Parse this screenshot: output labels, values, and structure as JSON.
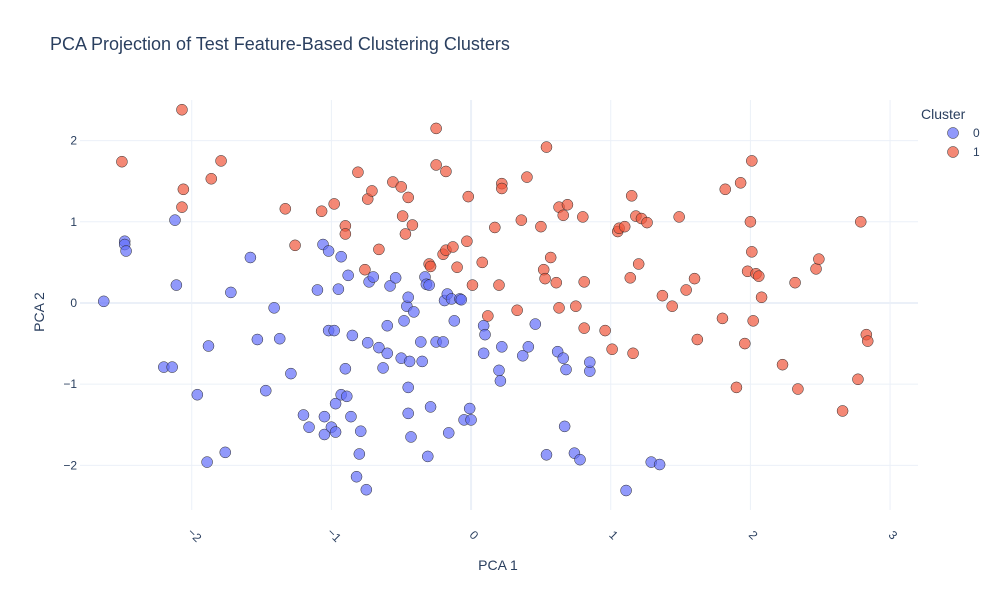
{
  "chart_data": {
    "type": "scatter",
    "title": "PCA Projection of Test Feature-Based Clustering Clusters",
    "xlabel": "PCA 1",
    "ylabel": "PCA 2",
    "xlim": [
      -2.8,
      3.2
    ],
    "ylim": [
      -2.55,
      2.5
    ],
    "x_ticks": [
      -2,
      -1,
      0,
      1,
      2,
      3
    ],
    "x_tick_labels": [
      "−2",
      "−1",
      "0",
      "1",
      "2",
      "3"
    ],
    "y_ticks": [
      -2,
      -1,
      0,
      1,
      2
    ],
    "y_tick_labels": [
      "−2",
      "−1",
      "0",
      "1",
      "2"
    ],
    "grid": true,
    "legend": {
      "title": "Cluster",
      "position": "top-right"
    },
    "series": [
      {
        "name": "0",
        "color": "#636efa",
        "points": [
          [
            -2.63,
            0.02
          ],
          [
            -2.48,
            0.76
          ],
          [
            -2.48,
            0.72
          ],
          [
            -2.47,
            0.64
          ],
          [
            -2.2,
            -0.79
          ],
          [
            -2.14,
            -0.79
          ],
          [
            -2.12,
            1.02
          ],
          [
            -2.11,
            0.22
          ],
          [
            -1.96,
            -1.13
          ],
          [
            -1.88,
            -0.53
          ],
          [
            -1.89,
            -1.96
          ],
          [
            -1.76,
            -1.84
          ],
          [
            -1.72,
            0.13
          ],
          [
            -1.58,
            0.56
          ],
          [
            -1.53,
            -0.45
          ],
          [
            -1.47,
            -1.08
          ],
          [
            -1.41,
            -0.06
          ],
          [
            -1.37,
            -0.44
          ],
          [
            -1.29,
            -0.87
          ],
          [
            -1.2,
            -1.38
          ],
          [
            -1.16,
            -1.53
          ],
          [
            -1.1,
            0.16
          ],
          [
            -1.06,
            0.72
          ],
          [
            -1.05,
            -1.4
          ],
          [
            -1.05,
            -1.62
          ],
          [
            -1.02,
            0.64
          ],
          [
            -1.02,
            -0.34
          ],
          [
            -1.0,
            -1.53
          ],
          [
            -0.98,
            -0.34
          ],
          [
            -0.97,
            -1.59
          ],
          [
            -0.97,
            -1.24
          ],
          [
            -0.95,
            0.17
          ],
          [
            -0.93,
            0.57
          ],
          [
            -0.93,
            -1.13
          ],
          [
            -0.9,
            -0.81
          ],
          [
            -0.89,
            -1.15
          ],
          [
            -0.88,
            0.34
          ],
          [
            -0.86,
            -1.4
          ],
          [
            -0.85,
            -0.4
          ],
          [
            -0.82,
            -2.14
          ],
          [
            -0.8,
            -1.86
          ],
          [
            -0.79,
            -1.58
          ],
          [
            -0.75,
            -2.3
          ],
          [
            -0.74,
            -0.49
          ],
          [
            -0.73,
            0.26
          ],
          [
            -0.7,
            0.32
          ],
          [
            -0.66,
            -0.55
          ],
          [
            -0.63,
            -0.8
          ],
          [
            -0.6,
            -0.62
          ],
          [
            -0.6,
            -0.28
          ],
          [
            -0.58,
            0.21
          ],
          [
            -0.54,
            0.31
          ],
          [
            -0.5,
            -0.68
          ],
          [
            -0.48,
            -0.22
          ],
          [
            -0.46,
            -0.04
          ],
          [
            -0.45,
            0.07
          ],
          [
            -0.45,
            -1.04
          ],
          [
            -0.45,
            -1.36
          ],
          [
            -0.44,
            -0.72
          ],
          [
            -0.43,
            -1.65
          ],
          [
            -0.41,
            -0.11
          ],
          [
            -0.36,
            -0.48
          ],
          [
            -0.35,
            -0.72
          ],
          [
            -0.33,
            0.32
          ],
          [
            -0.32,
            0.23
          ],
          [
            -0.31,
            -1.89
          ],
          [
            -0.3,
            0.22
          ],
          [
            -0.29,
            -1.28
          ],
          [
            -0.25,
            -0.48
          ],
          [
            -0.2,
            -0.48
          ],
          [
            -0.19,
            0.03
          ],
          [
            -0.17,
            0.11
          ],
          [
            -0.16,
            -1.6
          ],
          [
            -0.14,
            0.05
          ],
          [
            -0.12,
            -0.22
          ],
          [
            -0.08,
            0.05
          ],
          [
            -0.07,
            0.04
          ],
          [
            -0.05,
            -1.44
          ],
          [
            0.0,
            -1.44
          ],
          [
            -0.01,
            -1.3
          ],
          [
            0.09,
            -0.28
          ],
          [
            0.1,
            -0.39
          ],
          [
            0.09,
            -0.62
          ],
          [
            0.2,
            -0.83
          ],
          [
            0.21,
            -0.96
          ],
          [
            0.22,
            -0.54
          ],
          [
            0.37,
            -0.65
          ],
          [
            0.41,
            -0.54
          ],
          [
            0.46,
            -0.26
          ],
          [
            0.54,
            -1.87
          ],
          [
            0.62,
            -0.6
          ],
          [
            0.66,
            -0.68
          ],
          [
            0.67,
            -1.52
          ],
          [
            0.68,
            -0.82
          ],
          [
            0.74,
            -1.85
          ],
          [
            0.78,
            -1.93
          ],
          [
            0.85,
            -0.84
          ],
          [
            0.85,
            -0.73
          ],
          [
            1.11,
            -2.31
          ],
          [
            1.29,
            -1.96
          ],
          [
            1.35,
            -1.99
          ]
        ]
      },
      {
        "name": "1",
        "color": "#ef553b",
        "points": [
          [
            -2.5,
            1.74
          ],
          [
            -2.07,
            2.38
          ],
          [
            -2.06,
            1.4
          ],
          [
            -2.07,
            1.18
          ],
          [
            -1.86,
            1.53
          ],
          [
            -1.79,
            1.75
          ],
          [
            -1.33,
            1.16
          ],
          [
            -1.26,
            0.71
          ],
          [
            -1.07,
            1.13
          ],
          [
            -0.98,
            1.22
          ],
          [
            -0.9,
            0.95
          ],
          [
            -0.9,
            0.85
          ],
          [
            -0.81,
            1.61
          ],
          [
            -0.76,
            0.41
          ],
          [
            -0.74,
            1.28
          ],
          [
            -0.71,
            1.38
          ],
          [
            -0.66,
            0.66
          ],
          [
            -0.56,
            1.49
          ],
          [
            -0.5,
            1.43
          ],
          [
            -0.49,
            1.07
          ],
          [
            -0.47,
            0.85
          ],
          [
            -0.45,
            1.3
          ],
          [
            -0.42,
            0.96
          ],
          [
            -0.3,
            0.48
          ],
          [
            -0.29,
            0.45
          ],
          [
            -0.25,
            2.15
          ],
          [
            -0.25,
            1.7
          ],
          [
            -0.2,
            0.6
          ],
          [
            -0.18,
            1.62
          ],
          [
            -0.18,
            0.65
          ],
          [
            -0.13,
            0.69
          ],
          [
            -0.1,
            0.44
          ],
          [
            -0.02,
            1.31
          ],
          [
            -0.03,
            0.76
          ],
          [
            0.01,
            0.22
          ],
          [
            0.08,
            0.5
          ],
          [
            0.12,
            -0.16
          ],
          [
            0.17,
            0.93
          ],
          [
            0.2,
            0.22
          ],
          [
            0.22,
            1.47
          ],
          [
            0.22,
            1.41
          ],
          [
            0.33,
            -0.09
          ],
          [
            0.36,
            1.02
          ],
          [
            0.4,
            1.55
          ],
          [
            0.5,
            0.94
          ],
          [
            0.52,
            0.41
          ],
          [
            0.53,
            0.3
          ],
          [
            0.54,
            1.92
          ],
          [
            0.57,
            0.56
          ],
          [
            0.61,
            0.25
          ],
          [
            0.63,
            -0.06
          ],
          [
            0.63,
            1.18
          ],
          [
            0.66,
            1.08
          ],
          [
            0.69,
            1.21
          ],
          [
            0.75,
            -0.04
          ],
          [
            0.8,
            1.06
          ],
          [
            0.81,
            0.26
          ],
          [
            0.81,
            -0.31
          ],
          [
            0.96,
            -0.34
          ],
          [
            1.01,
            -0.57
          ],
          [
            1.05,
            0.88
          ],
          [
            1.06,
            0.92
          ],
          [
            1.1,
            0.94
          ],
          [
            1.14,
            0.31
          ],
          [
            1.15,
            1.32
          ],
          [
            1.16,
            -0.62
          ],
          [
            1.18,
            1.07
          ],
          [
            1.2,
            0.48
          ],
          [
            1.22,
            1.04
          ],
          [
            1.26,
            0.99
          ],
          [
            1.37,
            0.09
          ],
          [
            1.44,
            -0.04
          ],
          [
            1.49,
            1.06
          ],
          [
            1.54,
            0.16
          ],
          [
            1.6,
            0.3
          ],
          [
            1.62,
            -0.45
          ],
          [
            1.8,
            -0.19
          ],
          [
            1.82,
            1.4
          ],
          [
            1.93,
            1.48
          ],
          [
            1.96,
            -0.5
          ],
          [
            1.98,
            0.39
          ],
          [
            2.0,
            1.0
          ],
          [
            2.01,
            0.63
          ],
          [
            2.01,
            1.75
          ],
          [
            2.02,
            -0.22
          ],
          [
            2.04,
            0.36
          ],
          [
            2.06,
            0.33
          ],
          [
            2.08,
            0.07
          ],
          [
            1.9,
            -1.04
          ],
          [
            2.23,
            -0.76
          ],
          [
            2.32,
            0.25
          ],
          [
            2.34,
            -1.06
          ],
          [
            2.47,
            0.42
          ],
          [
            2.49,
            0.54
          ],
          [
            2.66,
            -1.33
          ],
          [
            2.77,
            -0.94
          ],
          [
            2.79,
            1.0
          ],
          [
            2.83,
            -0.39
          ],
          [
            2.84,
            -0.47
          ]
        ]
      }
    ]
  }
}
